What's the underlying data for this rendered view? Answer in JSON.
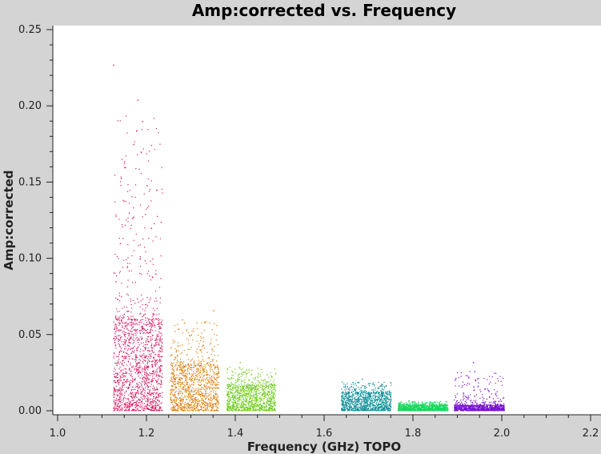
{
  "chart_data": {
    "type": "scatter",
    "title": "Amp:corrected vs. Frequency",
    "xlabel": "Frequency (GHz) TOPO",
    "ylabel": "Amp:corrected",
    "xlim": [
      1.0,
      2.2
    ],
    "ylim": [
      0.0,
      0.25
    ],
    "x_ticks": [
      "1.0",
      "1.2",
      "1.4",
      "1.6",
      "1.8",
      "2.0",
      "2.2"
    ],
    "y_ticks": [
      "0.00",
      "0.05",
      "0.10",
      "0.15",
      "0.20",
      "0.25"
    ],
    "x_tick_values": [
      1.0,
      1.2,
      1.4,
      1.6,
      1.8,
      2.0,
      2.2
    ],
    "y_tick_values": [
      0.0,
      0.05,
      0.1,
      0.15,
      0.2,
      0.25
    ],
    "grid": false,
    "legend": "none",
    "series": [
      {
        "color": "#d81b60",
        "x_range": [
          1.125,
          1.235
        ],
        "typical_max": 0.06,
        "peak": 0.227,
        "points": [
          [
            1.125,
            0.227
          ],
          [
            1.18,
            0.204
          ],
          [
            1.19,
            0.19
          ],
          [
            1.17,
            0.175
          ],
          [
            1.15,
            0.16
          ],
          [
            1.2,
            0.148
          ],
          [
            1.16,
            0.13
          ],
          [
            1.21,
            0.12
          ],
          [
            1.14,
            0.11
          ],
          [
            1.185,
            0.1
          ],
          [
            1.22,
            0.09
          ],
          [
            1.13,
            0.085
          ]
        ]
      },
      {
        "color": "#e07a00",
        "x_range": [
          1.253,
          1.362
        ],
        "typical_max": 0.03,
        "peak": 0.066,
        "points": [
          [
            1.35,
            0.066
          ],
          [
            1.33,
            0.058
          ],
          [
            1.28,
            0.06
          ],
          [
            1.3,
            0.05
          ],
          [
            1.26,
            0.045
          ],
          [
            1.32,
            0.04
          ],
          [
            1.29,
            0.037
          ],
          [
            1.34,
            0.035
          ]
        ]
      },
      {
        "color": "#6fcc1a",
        "x_range": [
          1.38,
          1.49
        ],
        "typical_max": 0.017,
        "peak": 0.032,
        "points": [
          [
            1.41,
            0.032
          ],
          [
            1.43,
            0.027
          ],
          [
            1.47,
            0.024
          ],
          [
            1.39,
            0.022
          ],
          [
            1.45,
            0.02
          ]
        ]
      },
      {
        "color": "#129099",
        "x_range": [
          1.638,
          1.75
        ],
        "typical_max": 0.012,
        "peak": 0.021,
        "points": [
          [
            1.685,
            0.021
          ],
          [
            1.7,
            0.018
          ],
          [
            1.66,
            0.016
          ],
          [
            1.72,
            0.015
          ]
        ]
      },
      {
        "color": "#17d85a",
        "x_range": [
          1.765,
          1.878
        ],
        "typical_max": 0.004,
        "peak": 0.007,
        "points": [
          [
            1.79,
            0.007
          ],
          [
            1.82,
            0.006
          ],
          [
            1.85,
            0.006
          ]
        ]
      },
      {
        "color": "#7a12d6",
        "x_range": [
          1.892,
          2.005
        ],
        "typical_max": 0.004,
        "peak": 0.032,
        "points": [
          [
            1.935,
            0.032
          ],
          [
            1.938,
            0.026
          ],
          [
            1.94,
            0.02
          ],
          [
            1.936,
            0.016
          ],
          [
            1.97,
            0.013
          ],
          [
            1.985,
            0.011
          ],
          [
            1.92,
            0.009
          ]
        ]
      }
    ]
  }
}
